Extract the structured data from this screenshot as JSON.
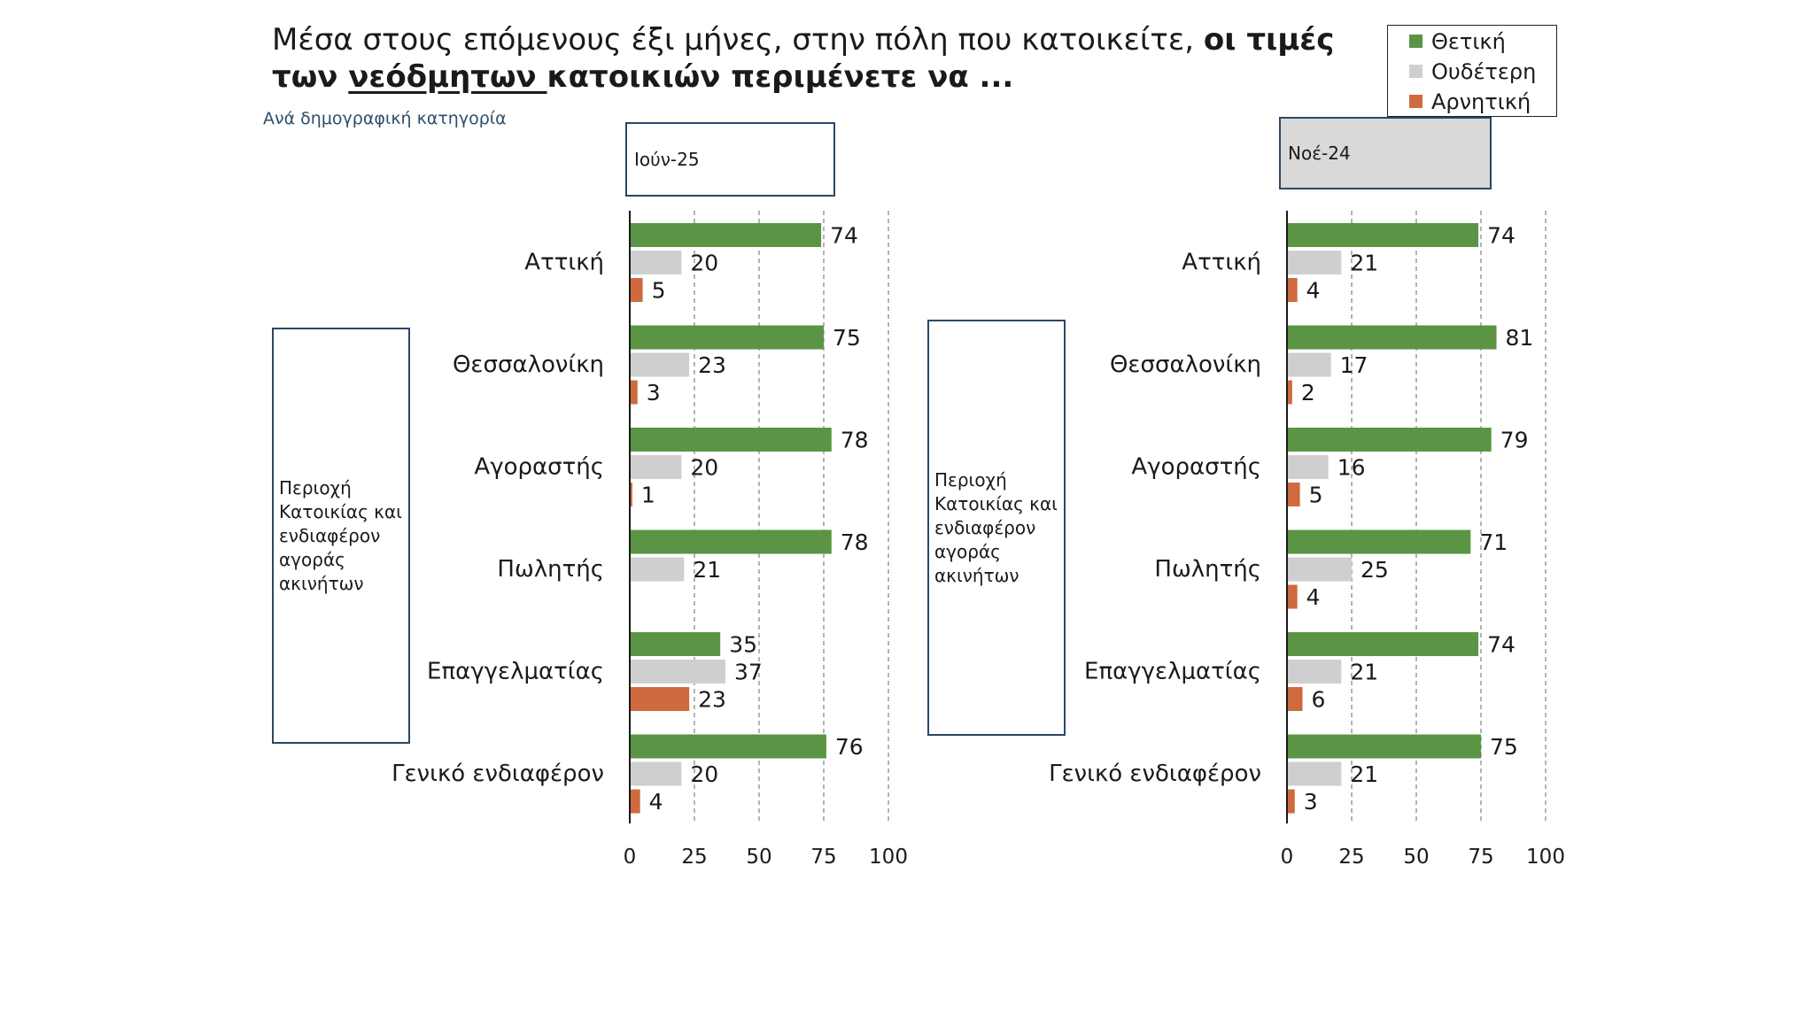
{
  "title": {
    "line1_normal": "Μέσα στους επόμενους έξι μήνες, στην πόλη που κατοικείτε, ",
    "line1_bold": "οι τιμές",
    "line2_bold_a": "των ",
    "line2_underlined": "νεόδμητων ",
    "line2_bold_b": "κατοικιών περιμένετε να ..."
  },
  "subtitle": "Ανά δημογραφική κατηγορία",
  "legend": [
    {
      "label": "Θετική",
      "color": "#5a9444"
    },
    {
      "label": "Ουδέτερη",
      "color": "#cfcfcf"
    },
    {
      "label": "Αρνητική",
      "color": "#cf6a3f"
    }
  ],
  "side_label": "Περιοχή Κατοικίας και ενδιαφέρον αγοράς ακινήτων",
  "chart_data": [
    {
      "type": "bar",
      "orientation": "horizontal",
      "period": "Ιούν-25",
      "categories": [
        "Αττική",
        "Θεσσαλονίκη",
        "Αγοραστής",
        "Πωλητής",
        "Επαγγελματίας",
        "Γενικό ενδιαφέρον"
      ],
      "series": [
        {
          "name": "Θετική",
          "color": "#5a9444",
          "values": [
            74,
            75,
            78,
            78,
            35,
            76
          ]
        },
        {
          "name": "Ουδέτερη",
          "color": "#cfcfcf",
          "values": [
            20,
            23,
            20,
            21,
            37,
            20
          ]
        },
        {
          "name": "Αρνητική",
          "color": "#cf6a3f",
          "values": [
            5,
            3,
            1,
            null,
            23,
            4
          ]
        }
      ],
      "xlim": [
        0,
        100
      ],
      "xticks": [
        "0",
        "25",
        "50",
        "75",
        "100"
      ],
      "grid": "vertical dashed",
      "legend": "top-right"
    },
    {
      "type": "bar",
      "orientation": "horizontal",
      "period": "Νοέ-24",
      "categories": [
        "Αττική",
        "Θεσσαλονίκη",
        "Αγοραστής",
        "Πωλητής",
        "Επαγγελματίας",
        "Γενικό ενδιαφέρον"
      ],
      "series": [
        {
          "name": "Θετική",
          "color": "#5a9444",
          "values": [
            74,
            81,
            79,
            71,
            74,
            75
          ]
        },
        {
          "name": "Ουδέτερη",
          "color": "#cfcfcf",
          "values": [
            21,
            17,
            16,
            25,
            21,
            21
          ]
        },
        {
          "name": "Αρνητική",
          "color": "#cf6a3f",
          "values": [
            4,
            2,
            5,
            4,
            6,
            3
          ]
        }
      ],
      "xlim": [
        0,
        100
      ],
      "xticks": [
        "0",
        "25",
        "50",
        "75",
        "100"
      ],
      "grid": "vertical dashed",
      "legend": "top-right"
    }
  ]
}
